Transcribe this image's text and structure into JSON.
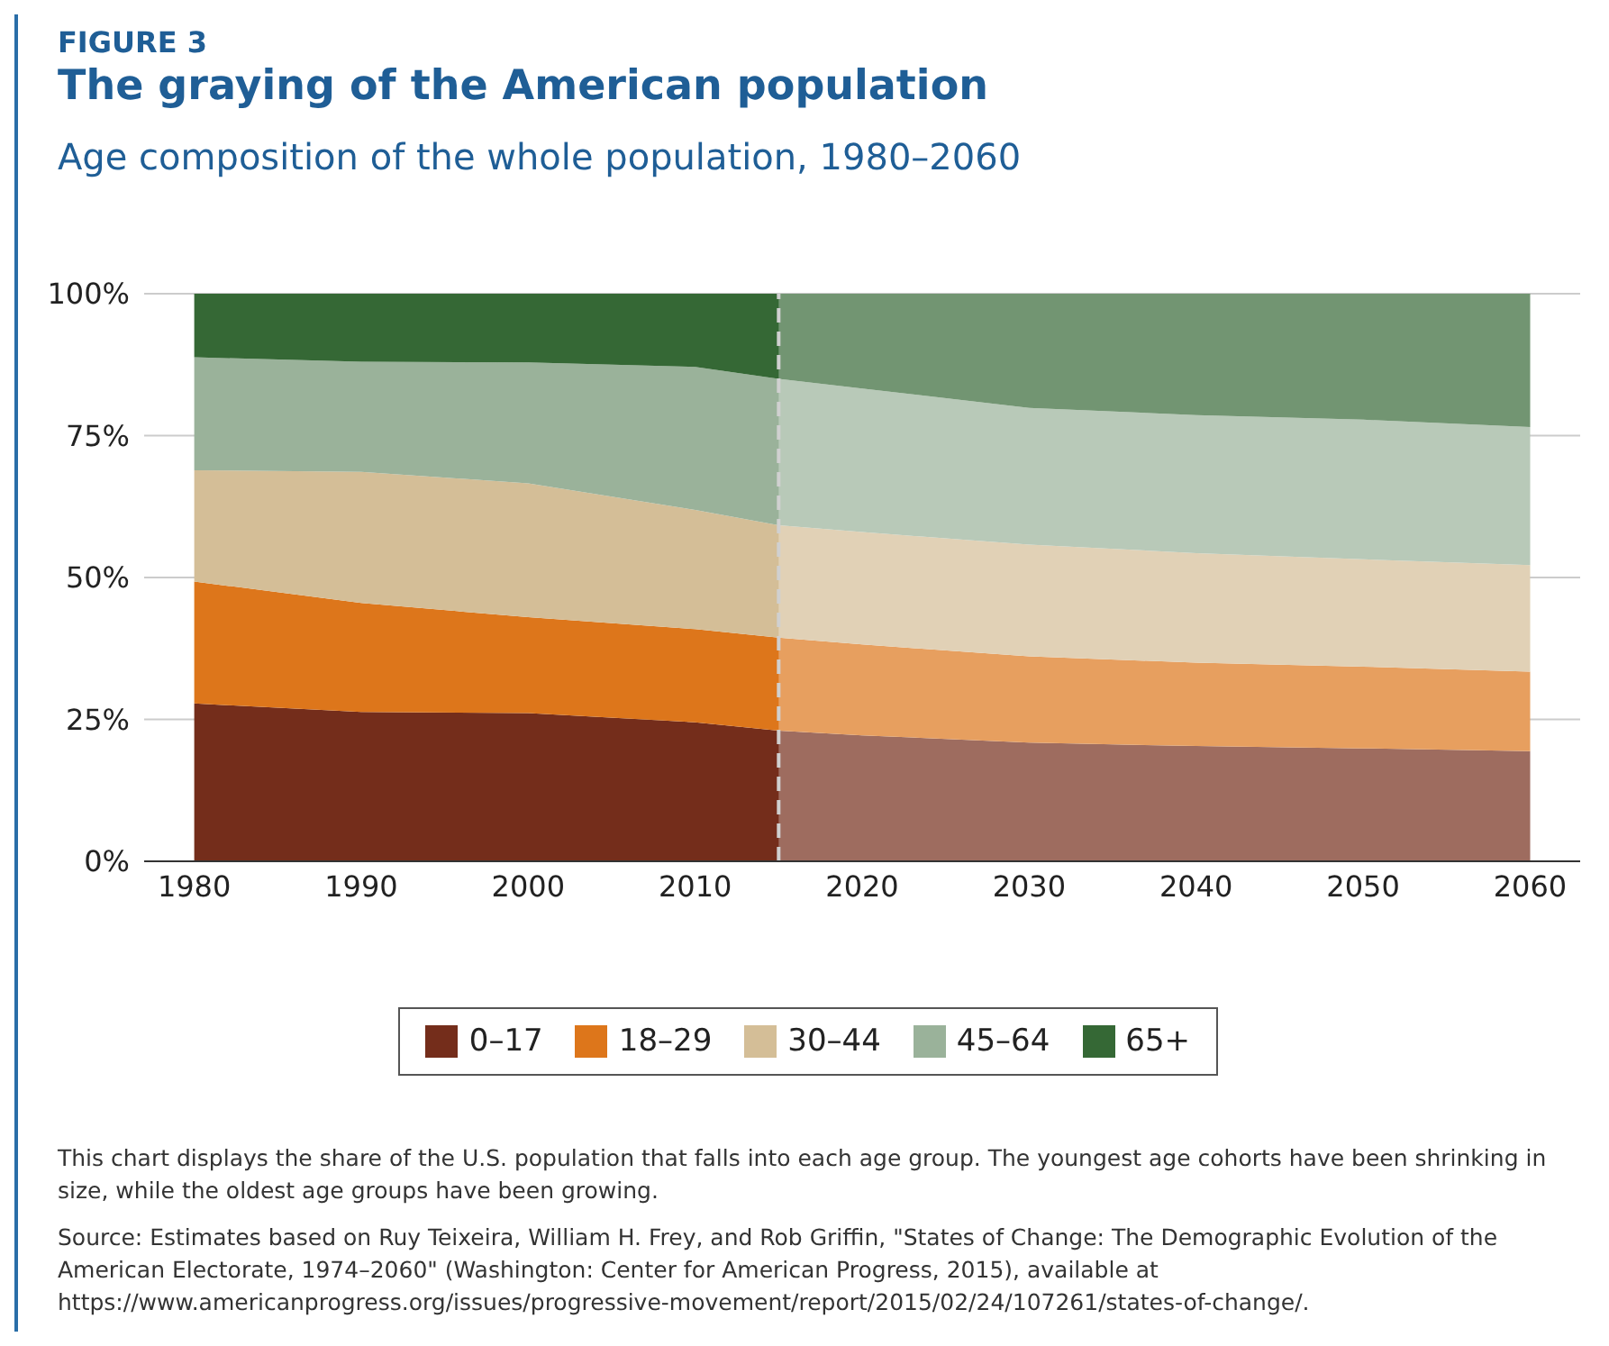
{
  "chart_data": {
    "type": "area",
    "stacked": true,
    "title": "The graying of the American population",
    "subtitle": "Age composition of the whole population, 1980–2060",
    "x": [
      1980,
      1990,
      2000,
      2010,
      2015,
      2020,
      2030,
      2040,
      2050,
      2060
    ],
    "series": [
      {
        "name": "0–17",
        "color": "#742d1b",
        "values": [
          27.8,
          26.3,
          26.1,
          24.5,
          23.0,
          22.2,
          20.9,
          20.3,
          19.9,
          19.4
        ]
      },
      {
        "name": "18–29",
        "color": "#dd761b",
        "values": [
          21.5,
          19.2,
          16.9,
          16.4,
          16.4,
          16.0,
          15.2,
          14.7,
          14.4,
          14.0
        ]
      },
      {
        "name": "30–44",
        "color": "#d4be97",
        "values": [
          19.6,
          23.1,
          23.6,
          21.0,
          19.8,
          19.8,
          19.7,
          19.3,
          18.9,
          18.8
        ]
      },
      {
        "name": "45–64",
        "color": "#9ab29a",
        "values": [
          19.9,
          19.4,
          21.3,
          25.2,
          25.8,
          25.3,
          24.1,
          24.3,
          24.6,
          24.3
        ]
      },
      {
        "name": "65+",
        "color": "#356835",
        "values": [
          11.2,
          12.0,
          12.1,
          12.9,
          15.0,
          16.7,
          20.1,
          21.4,
          22.2,
          23.5
        ]
      }
    ],
    "xlim": [
      1977,
      2063
    ],
    "xticks": [
      1980,
      1990,
      2000,
      2010,
      2020,
      2030,
      2040,
      2050,
      2060
    ],
    "ylim": [
      0,
      100
    ],
    "yticks": [
      {
        "value": 0,
        "label": "0%"
      },
      {
        "value": 25,
        "label": "25%"
      },
      {
        "value": 50,
        "label": "50%"
      },
      {
        "value": 75,
        "label": "75%"
      },
      {
        "value": 100,
        "label": "100%"
      }
    ],
    "grid": "y",
    "legend": "bottom",
    "bands": [
      {
        "axis": "x",
        "from": 2015,
        "to": 2060,
        "color": "#ffffff"
      }
    ],
    "ref_lines": [
      {
        "axis": "x",
        "value": 2015,
        "color": "#d0d0d0",
        "line_style": "dashed"
      }
    ],
    "annotations": [
      "FIGURE 3",
      "This chart displays the share of the U.S. population that falls into each age group. The youngest age cohorts have been shrinking in size, while the oldest age groups have been growing.",
      "Source: Estimates based on Ruy Teixeira, William H. Frey, and Rob Griffin, \"States of Change: The Demographic Evolution of the American Electorate, 1974–2060\" (Washington: Center for American Progress, 2015), available at https://www.americanprogress.org/issues/progressive-movement/report/2015/02/24/107261/states-of-change/."
    ]
  }
}
